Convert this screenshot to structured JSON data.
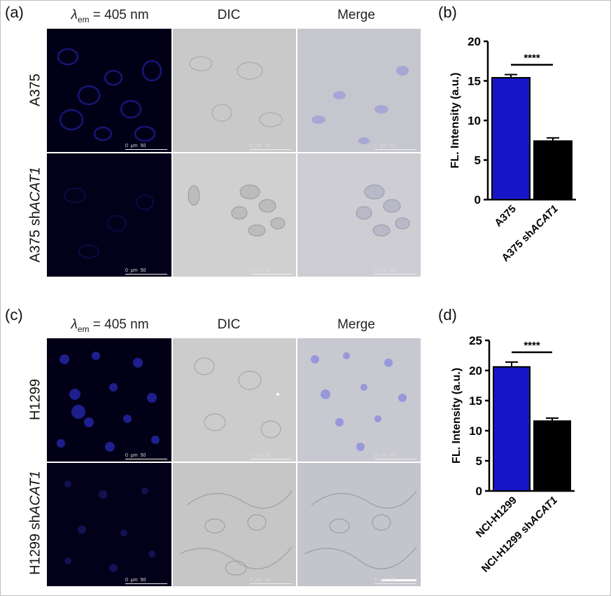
{
  "figure": {
    "panel_labels": [
      "(a)",
      "(b)",
      "(c)",
      "(d)"
    ],
    "column_headers": {
      "lambda_symbol": "λ",
      "lambda_sub": "em",
      "lambda_rest": " = 405 nm",
      "dic": "DIC",
      "merge": "Merge"
    },
    "rows": {
      "a_top": {
        "prefix": "A375",
        "italic": ""
      },
      "a_bottom": {
        "prefix": "A375 sh",
        "italic": "ACAT1"
      },
      "c_top": {
        "prefix": "H1299",
        "italic": ""
      },
      "c_bottom": {
        "prefix": "H1299 sh",
        "italic": "ACAT1"
      }
    },
    "scale_bar": {
      "start": "0",
      "unit": "μm",
      "end": "50"
    }
  },
  "chart_data": [
    {
      "type": "bar",
      "panel": "(b)",
      "categories": [
        "A375",
        "A375 shACAT1"
      ],
      "category_prefix": [
        "A375",
        "A375 sh"
      ],
      "category_italic": [
        "",
        "ACAT1"
      ],
      "values": [
        15.4,
        7.4
      ],
      "errors": [
        0.4,
        0.4
      ],
      "colors": [
        "#1616c8",
        "#000000"
      ],
      "ylabel": "FL. Intensity (a.u.)",
      "ylim": [
        0,
        20
      ],
      "yticks": [
        0,
        5,
        10,
        15,
        20
      ],
      "significance": "****"
    },
    {
      "type": "bar",
      "panel": "(d)",
      "categories": [
        "NCI-H1299",
        "NCI-H1299 shACAT1"
      ],
      "category_prefix": [
        "NCI-H1299",
        "NCI-H1299 sh"
      ],
      "category_italic": [
        "",
        "ACAT1"
      ],
      "values": [
        20.6,
        11.6
      ],
      "errors": [
        0.8,
        0.5
      ],
      "colors": [
        "#1616c8",
        "#000000"
      ],
      "ylabel": "FL. Intensity (a.u.)",
      "ylim": [
        0,
        25
      ],
      "yticks": [
        0,
        5,
        10,
        15,
        20,
        25
      ],
      "significance": "****"
    }
  ]
}
